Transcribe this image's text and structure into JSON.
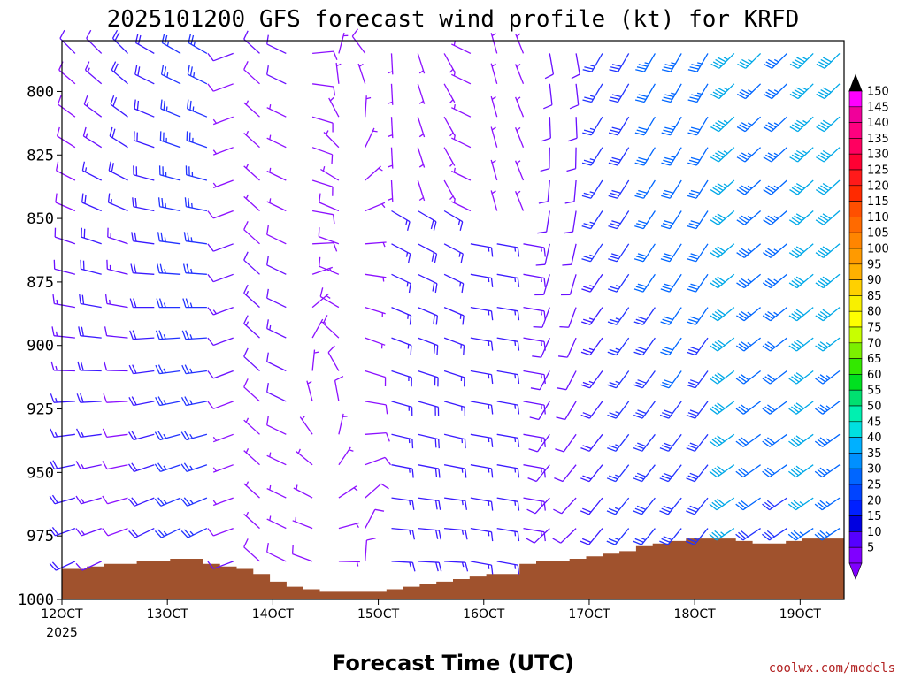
{
  "chart_data": {
    "type": "wind-barb profile (time-pressure cross-section)",
    "title": "2025101200 GFS forecast wind profile (kt) for KRFD",
    "xlabel": "Forecast Time (UTC)",
    "x_ticks": [
      "12OCT",
      "13OCT",
      "14OCT",
      "15OCT",
      "16OCT",
      "17OCT",
      "18OCT",
      "19OCT"
    ],
    "x_year": "2025",
    "x_range_hours": [
      0,
      178
    ],
    "x_step_hours": 6,
    "y_ticks": [
      "800",
      "825",
      "850",
      "875",
      "900",
      "925",
      "950",
      "975",
      "1000"
    ],
    "y_range_hpa": [
      780,
      1000
    ],
    "wind_levels_hpa": [
      785,
      797,
      810,
      822,
      835,
      847,
      860,
      872,
      885,
      897,
      910,
      922,
      935,
      947,
      960,
      972,
      985
    ],
    "speed_units": "kt",
    "surface_pressure_hpa": [
      988,
      988,
      987,
      986,
      986,
      985,
      985,
      984,
      984,
      986,
      987,
      988,
      990,
      993,
      995,
      996,
      997,
      997,
      997,
      997,
      996,
      995,
      994,
      993,
      992,
      991,
      990,
      990,
      986,
      985,
      985,
      984,
      983,
      982,
      981,
      979,
      978,
      977,
      976,
      976,
      976,
      977,
      978,
      978,
      977,
      976,
      976,
      976
    ],
    "colorbar": {
      "levels": [
        "150",
        "145",
        "140",
        "135",
        "130",
        "125",
        "120",
        "115",
        "110",
        "105",
        "100",
        "95",
        "90",
        "85",
        "80",
        "75",
        "70",
        "65",
        "60",
        "55",
        "50",
        "45",
        "40",
        "35",
        "30",
        "25",
        "20",
        "15",
        "10",
        "5"
      ],
      "colors": [
        "#ff00ff",
        "#f0009a",
        "#ff007f",
        "#ff0060",
        "#ff0033",
        "#ff1a1a",
        "#ff2a00",
        "#ff4f00",
        "#ff6a00",
        "#ff8500",
        "#ff9a00",
        "#ffb000",
        "#ffd000",
        "#f8f000",
        "#ffff00",
        "#c8ff00",
        "#7cf000",
        "#33e800",
        "#00e020",
        "#00e070",
        "#00f0b0",
        "#00e0e0",
        "#00b0ff",
        "#0090ff",
        "#0066ff",
        "#0044ff",
        "#0020ff",
        "#0000e0",
        "#5500ff",
        "#8000ff"
      ]
    },
    "terrain_color": "#a0522d"
  },
  "credit": "coolwx.com/models"
}
